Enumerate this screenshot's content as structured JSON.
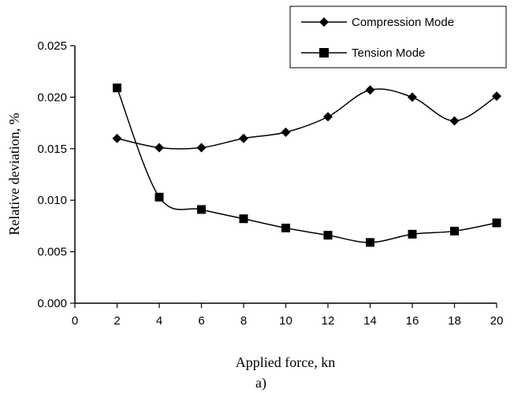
{
  "chart_data": {
    "type": "line",
    "xlabel": "Applied force, kn",
    "ylabel": "Relative deviation, %",
    "caption": "a)",
    "xlim": [
      0,
      20
    ],
    "ylim": [
      0,
      0.025
    ],
    "x_ticks": [
      "0",
      "2",
      "4",
      "6",
      "8",
      "10",
      "12",
      "14",
      "16",
      "18",
      "20"
    ],
    "y_ticks": [
      "0.000",
      "0.005",
      "0.010",
      "0.015",
      "0.020",
      "0.025"
    ],
    "grid": false,
    "legend_position": "top-right",
    "series": [
      {
        "name": "Compression Mode",
        "marker": "diamond",
        "x": [
          2,
          4,
          6,
          8,
          10,
          12,
          14,
          16,
          18,
          20
        ],
        "values": [
          0.016,
          0.0151,
          0.0151,
          0.016,
          0.0166,
          0.0181,
          0.0207,
          0.02,
          0.0177,
          0.0201
        ]
      },
      {
        "name": "Tension Mode",
        "marker": "square",
        "x": [
          2,
          4,
          6,
          8,
          10,
          12,
          14,
          16,
          18,
          20
        ],
        "values": [
          0.0209,
          0.0103,
          0.0091,
          0.0082,
          0.0073,
          0.0066,
          0.0059,
          0.0067,
          0.007,
          0.0078
        ]
      }
    ]
  }
}
